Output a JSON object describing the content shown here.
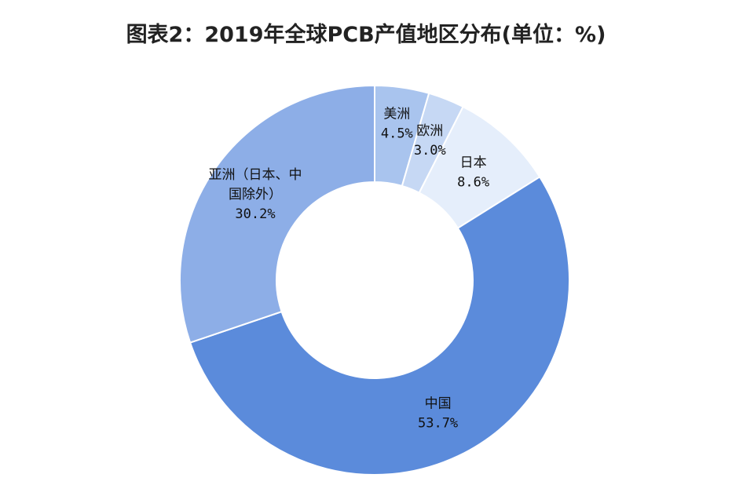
{
  "chart_data": {
    "type": "pie",
    "title": "图表2：2019年全球PCB产值地区分布(单位：%)",
    "categories": [
      "美洲",
      "欧洲",
      "日本",
      "中国",
      "亚洲（日本、中国除外）"
    ],
    "values": [
      4.5,
      3.0,
      8.6,
      53.7,
      30.2
    ],
    "value_labels": [
      "4.5%",
      "3.0%",
      "8.6%",
      "53.7%",
      "30.2%"
    ],
    "label_lines": [
      [
        "美洲",
        "4.5%"
      ],
      [
        "欧洲",
        "3.0%"
      ],
      [
        "日本",
        "8.6%"
      ],
      [
        "中国",
        "53.7%"
      ],
      [
        "亚洲（日本、中",
        "国除外）",
        "30.2%"
      ]
    ],
    "colors": [
      "#a9c4ee",
      "#c6d8f4",
      "#e5eefb",
      "#5b8bdb",
      "#8daee7"
    ],
    "donut": true,
    "start_angle": "12 o'clock",
    "direction": "clockwise",
    "legend": "none"
  }
}
